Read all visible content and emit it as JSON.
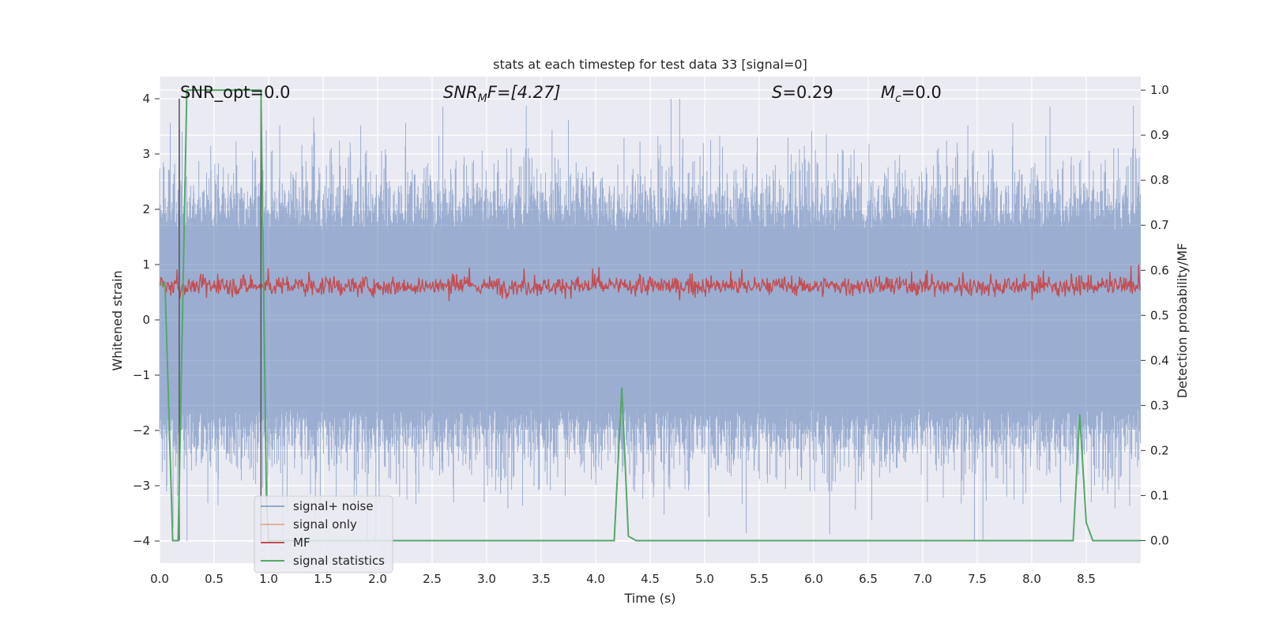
{
  "chart_data": {
    "type": "line",
    "title": "stats at each timestep for test data 33 [signal=0]",
    "xlabel": "Time (s)",
    "ylabel_left": "Whitened strain",
    "ylabel_right": "Detection probability/MF",
    "xlim": [
      0.0,
      9.0
    ],
    "ylim_left": [
      -4.4,
      4.4
    ],
    "ylim_right": [
      -0.05,
      1.03
    ],
    "xticks": [
      "0.0",
      "0.5",
      "1.0",
      "1.5",
      "2.0",
      "2.5",
      "3.0",
      "3.5",
      "4.0",
      "4.5",
      "5.0",
      "5.5",
      "6.0",
      "6.5",
      "7.0",
      "7.5",
      "8.0",
      "8.5"
    ],
    "yticks_left": [
      "4",
      "3",
      "2",
      "1",
      "0",
      "−1",
      "−2",
      "−3",
      "−4"
    ],
    "yticks_right": [
      "1.0",
      "0.9",
      "0.8",
      "0.7",
      "0.6",
      "0.5",
      "0.4",
      "0.3",
      "0.2",
      "0.1",
      "0.0"
    ],
    "grid": true,
    "legend_placement": "lower-left",
    "annotations": {
      "snr_opt": "SNR_opt=0.0",
      "snr_mf_prefix": "SNR",
      "snr_mf_sub": "M",
      "snr_mf_suffix": "F=[4.27]",
      "s_symbol": "S",
      "s_value": "=0.29",
      "mc_symbol": "M",
      "mc_sub": "c",
      "mc_value": "=0.0"
    },
    "series": [
      {
        "name": "signal+ noise",
        "color": "#4c72b0",
        "axis": "left",
        "description_values": "white noise, amplitude within about -4 to 4",
        "envelope_y_range": [
          -4.0,
          4.0
        ]
      },
      {
        "name": "signal only",
        "color": "#dd8452",
        "axis": "left",
        "values": []
      },
      {
        "name": "MF",
        "color": "#c44e52",
        "axis": "right",
        "envelope_y_range": [
          0.53,
          0.62
        ]
      },
      {
        "name": "signal statistics",
        "color": "#55a868",
        "axis": "right",
        "x": [
          0.0,
          0.05,
          0.12,
          0.17,
          0.25,
          0.93,
          0.98,
          1.0,
          1.03,
          4.17,
          4.24,
          4.3,
          4.37,
          8.38,
          8.44,
          8.5,
          8.56,
          9.0
        ],
        "y": [
          0.57,
          0.57,
          0.0,
          0.0,
          1.0,
          1.0,
          0.1,
          0.0,
          0.0,
          0.0,
          0.34,
          0.01,
          0.0,
          0.0,
          0.28,
          0.04,
          0.0,
          0.0
        ]
      }
    ],
    "vertical_lines_x": [
      0.18,
      0.93
    ],
    "vertical_lines_color": "#555555"
  }
}
